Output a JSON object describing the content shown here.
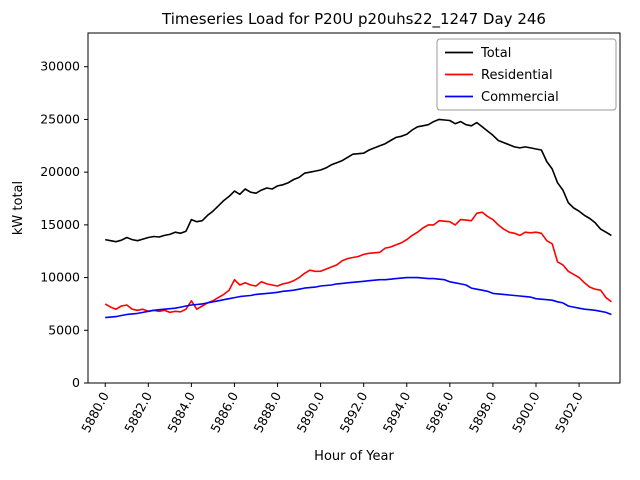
{
  "chart_data": {
    "type": "line",
    "title": "Timeseries Load for P20U p20uhs22_1247  Day 246",
    "xlabel": "Hour of Year",
    "ylabel": "kW total",
    "xlim": [
      5879.2,
      5903.9
    ],
    "ylim": [
      0,
      33200
    ],
    "grid": false,
    "legend_position": "upper right",
    "xtick_values": [
      5880,
      5882,
      5884,
      5886,
      5888,
      5890,
      5892,
      5894,
      5896,
      5898,
      5900,
      5902
    ],
    "xtick_labels": [
      "5880.0",
      "5882.0",
      "5884.0",
      "5886.0",
      "5888.0",
      "5890.0",
      "5892.0",
      "5894.0",
      "5896.0",
      "5898.0",
      "5900.0",
      "5902.0"
    ],
    "ytick_values": [
      0,
      5000,
      10000,
      15000,
      20000,
      25000,
      30000
    ],
    "ytick_labels": [
      "0",
      "5000",
      "10000",
      "15000",
      "20000",
      "25000",
      "30000"
    ],
    "x": [
      5880.0,
      5880.25,
      5880.5,
      5880.75,
      5881.0,
      5881.25,
      5881.5,
      5881.75,
      5882.0,
      5882.25,
      5882.5,
      5882.75,
      5883.0,
      5883.25,
      5883.5,
      5883.75,
      5884.0,
      5884.25,
      5884.5,
      5884.75,
      5885.0,
      5885.25,
      5885.5,
      5885.75,
      5886.0,
      5886.25,
      5886.5,
      5886.75,
      5887.0,
      5887.25,
      5887.5,
      5887.75,
      5888.0,
      5888.25,
      5888.5,
      5888.75,
      5889.0,
      5889.25,
      5889.5,
      5889.75,
      5890.0,
      5890.25,
      5890.5,
      5890.75,
      5891.0,
      5891.25,
      5891.5,
      5891.75,
      5892.0,
      5892.25,
      5892.5,
      5892.75,
      5893.0,
      5893.25,
      5893.5,
      5893.75,
      5894.0,
      5894.25,
      5894.5,
      5894.75,
      5895.0,
      5895.25,
      5895.5,
      5895.75,
      5896.0,
      5896.25,
      5896.5,
      5896.75,
      5897.0,
      5897.25,
      5897.5,
      5897.75,
      5898.0,
      5898.25,
      5898.5,
      5898.75,
      5899.0,
      5899.25,
      5899.5,
      5899.75,
      5900.0,
      5900.25,
      5900.5,
      5900.75,
      5901.0,
      5901.25,
      5901.5,
      5901.75,
      5902.0,
      5902.25,
      5902.5,
      5902.75,
      5903.0,
      5903.25,
      5903.5
    ],
    "series": [
      {
        "name": "Total",
        "color": "#000000",
        "values": [
          13600,
          13500,
          13400,
          13550,
          13800,
          13600,
          13500,
          13650,
          13800,
          13900,
          13850,
          14000,
          14100,
          14300,
          14200,
          14400,
          15500,
          15300,
          15400,
          15900,
          16300,
          16800,
          17300,
          17700,
          18200,
          17900,
          18400,
          18100,
          18000,
          18300,
          18500,
          18400,
          18700,
          18800,
          19000,
          19300,
          19500,
          19900,
          20000,
          20100,
          20200,
          20400,
          20700,
          20900,
          21100,
          21400,
          21700,
          21750,
          21800,
          22100,
          22300,
          22500,
          22700,
          23000,
          23300,
          23400,
          23600,
          24000,
          24300,
          24400,
          24500,
          24800,
          25000,
          24950,
          24900,
          24600,
          24800,
          24500,
          24400,
          24700,
          24300,
          23900,
          23500,
          23000,
          22800,
          22600,
          22400,
          22300,
          22400,
          22300,
          22200,
          22100,
          21000,
          20300,
          19000,
          18300,
          17100,
          16600,
          16300,
          15900,
          15600,
          15200,
          14600,
          14300,
          14000
        ]
      },
      {
        "name": "Residential",
        "color": "#ff0000",
        "values": [
          7500,
          7200,
          7000,
          7300,
          7400,
          7000,
          6900,
          7000,
          6800,
          6900,
          6800,
          6900,
          6700,
          6800,
          6750,
          7000,
          7800,
          7000,
          7300,
          7600,
          7800,
          8100,
          8400,
          8800,
          9800,
          9300,
          9500,
          9300,
          9200,
          9600,
          9400,
          9300,
          9200,
          9400,
          9500,
          9700,
          10000,
          10400,
          10700,
          10600,
          10600,
          10800,
          11000,
          11200,
          11600,
          11800,
          11900,
          12000,
          12200,
          12300,
          12350,
          12400,
          12800,
          12900,
          13100,
          13300,
          13600,
          14000,
          14300,
          14700,
          15000,
          15000,
          15400,
          15350,
          15300,
          15000,
          15500,
          15450,
          15400,
          16100,
          16200,
          15800,
          15500,
          15000,
          14600,
          14300,
          14200,
          14000,
          14300,
          14250,
          14300,
          14200,
          13500,
          13200,
          11500,
          11200,
          10600,
          10300,
          10000,
          9500,
          9100,
          8900,
          8800,
          8100,
          7700
        ]
      },
      {
        "name": "Commercial",
        "color": "#0000ff",
        "values": [
          6200,
          6250,
          6300,
          6400,
          6500,
          6550,
          6600,
          6700,
          6800,
          6900,
          6950,
          7000,
          7050,
          7100,
          7200,
          7300,
          7400,
          7450,
          7500,
          7600,
          7700,
          7800,
          7900,
          8000,
          8100,
          8200,
          8250,
          8300,
          8400,
          8450,
          8500,
          8550,
          8600,
          8700,
          8750,
          8800,
          8900,
          9000,
          9050,
          9100,
          9200,
          9250,
          9300,
          9400,
          9450,
          9500,
          9550,
          9600,
          9650,
          9700,
          9750,
          9800,
          9800,
          9850,
          9900,
          9950,
          10000,
          10000,
          10000,
          9950,
          9900,
          9900,
          9850,
          9800,
          9600,
          9500,
          9400,
          9300,
          9000,
          8900,
          8800,
          8700,
          8500,
          8450,
          8400,
          8350,
          8300,
          8250,
          8200,
          8150,
          8000,
          7950,
          7900,
          7850,
          7700,
          7600,
          7300,
          7200,
          7100,
          7000,
          6950,
          6900,
          6800,
          6700,
          6500
        ]
      }
    ]
  }
}
